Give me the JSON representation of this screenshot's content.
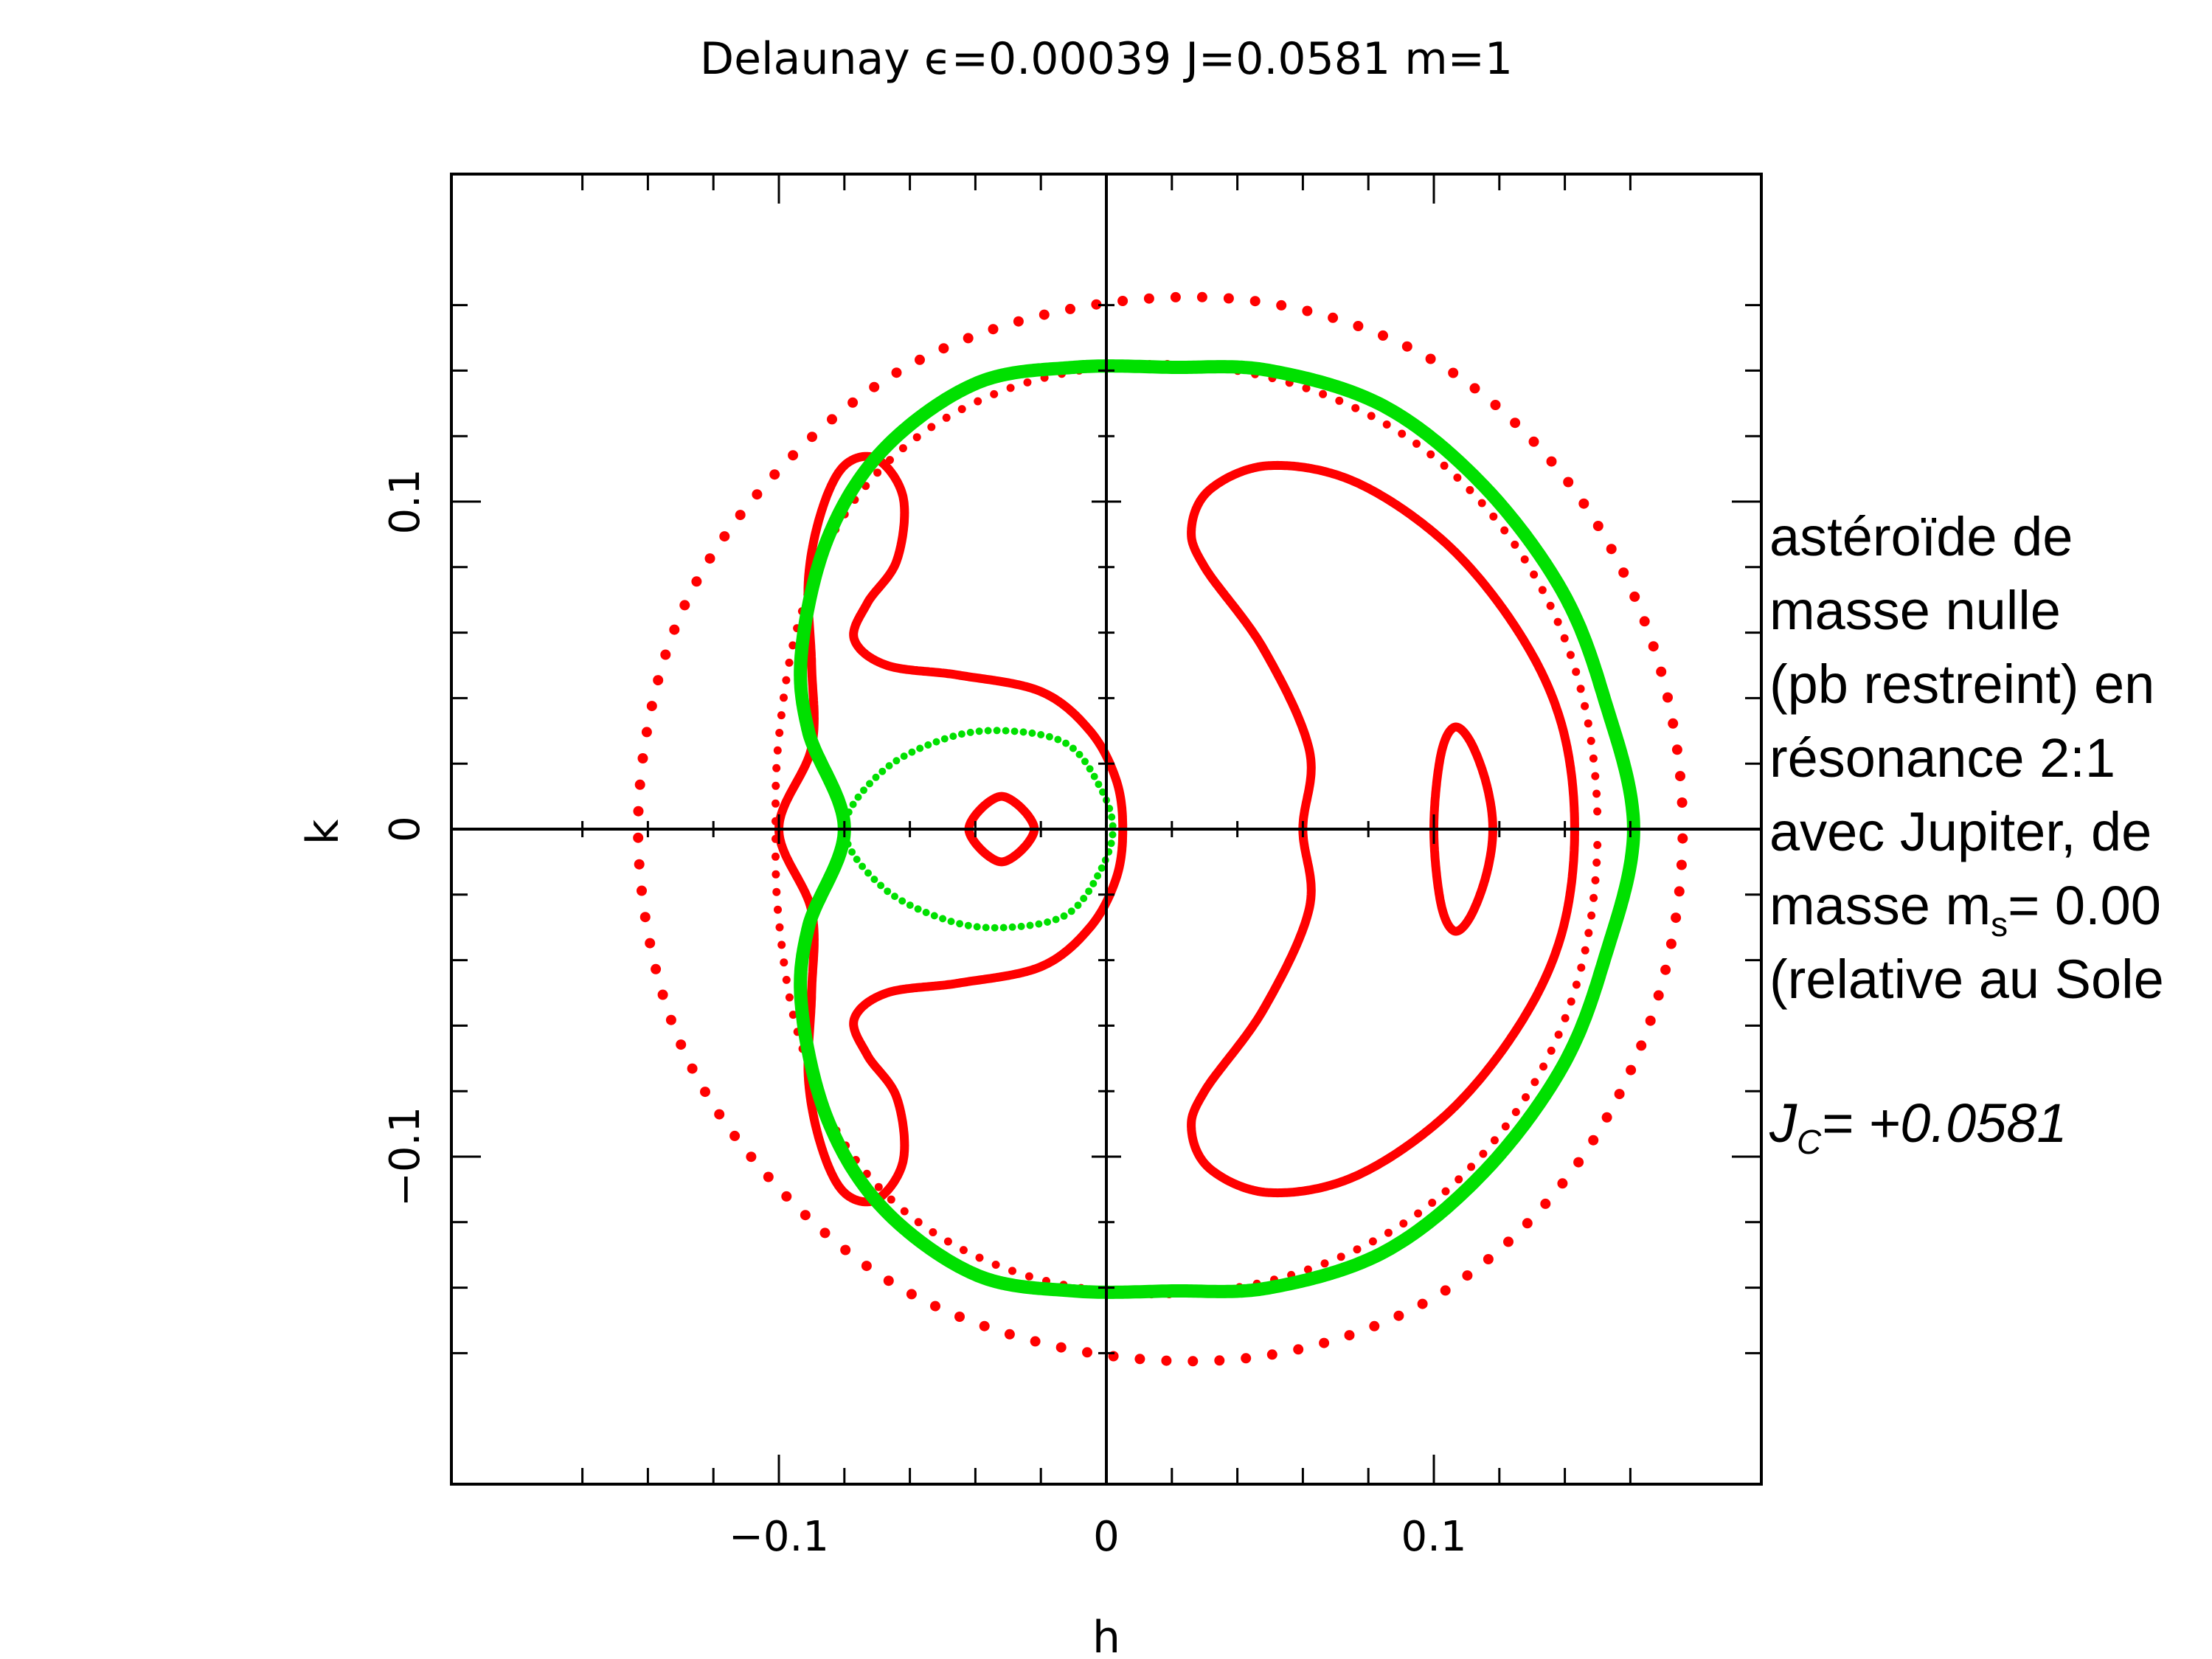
{
  "chart_data": {
    "type": "scatter",
    "title": "Delaunay ϵ=0.00039  J=0.0581  m=1",
    "xlabel": "h",
    "ylabel": "k",
    "xlim": [
      -0.2,
      0.2
    ],
    "ylim": [
      -0.2,
      0.2
    ],
    "xticks": [
      -0.1,
      0,
      0.1
    ],
    "xtick_labels": [
      "−0.1",
      "0",
      "0.1"
    ],
    "yticks": [
      -0.1,
      0,
      0.1
    ],
    "ytick_labels": [
      "−0.1",
      "0",
      "0.1"
    ],
    "grid": false,
    "axes_through_origin": true,
    "colors": {
      "trajectory": "#ff0000",
      "separatrix": "#00e000",
      "axes": "#000000"
    },
    "series": [
      {
        "curve": "outer-circle",
        "color": "#ff0000",
        "points": [
          [
            0.176,
            0
          ],
          [
            0.167,
            0.056
          ],
          [
            0.141,
            0.106
          ],
          [
            0.1,
            0.143
          ],
          [
            0.047,
            0.161
          ],
          [
            -0.01,
            0.159
          ],
          [
            -0.063,
            0.14
          ],
          [
            -0.106,
            0.103
          ],
          [
            -0.133,
            0.058
          ],
          [
            -0.143,
            0
          ],
          [
            -0.133,
            -0.058
          ],
          [
            -0.106,
            -0.103
          ],
          [
            -0.063,
            -0.14
          ],
          [
            -0.01,
            -0.159
          ],
          [
            0.047,
            -0.161
          ],
          [
            0.1,
            -0.143
          ],
          [
            0.141,
            -0.106
          ],
          [
            0.167,
            -0.056
          ],
          [
            0.176,
            0
          ]
        ]
      },
      {
        "curve": "middle-circle",
        "color": "#ff0000",
        "points": [
          [
            0.15,
            0
          ],
          [
            0.144,
            0.046
          ],
          [
            0.126,
            0.085
          ],
          [
            0.097,
            0.116
          ],
          [
            0.06,
            0.135
          ],
          [
            0.019,
            0.142
          ],
          [
            -0.022,
            0.137
          ],
          [
            -0.056,
            0.121
          ],
          [
            -0.08,
            0.096
          ],
          [
            -0.094,
            0.063
          ],
          [
            -0.1,
            0.028
          ],
          [
            -0.101,
            0
          ],
          [
            -0.1,
            -0.028
          ],
          [
            -0.094,
            -0.063
          ],
          [
            -0.08,
            -0.096
          ],
          [
            -0.056,
            -0.121
          ],
          [
            -0.022,
            -0.137
          ],
          [
            0.019,
            -0.142
          ],
          [
            0.06,
            -0.135
          ],
          [
            0.097,
            -0.116
          ],
          [
            0.126,
            -0.085
          ],
          [
            0.144,
            -0.046
          ],
          [
            0.15,
            0
          ]
        ]
      },
      {
        "curve": "crescent",
        "color": "#ff0000",
        "points": [
          [
            0.06,
            0
          ],
          [
            0.062,
            0.024
          ],
          [
            0.048,
            0.055
          ],
          [
            0.03,
            0.08
          ],
          [
            0.026,
            0.092
          ],
          [
            0.032,
            0.104
          ],
          [
            0.05,
            0.111
          ],
          [
            0.076,
            0.106
          ],
          [
            0.104,
            0.087
          ],
          [
            0.126,
            0.06
          ],
          [
            0.139,
            0.032
          ],
          [
            0.143,
            0
          ],
          [
            0.139,
            -0.032
          ],
          [
            0.126,
            -0.06
          ],
          [
            0.104,
            -0.087
          ],
          [
            0.076,
            -0.106
          ],
          [
            0.05,
            -0.111
          ],
          [
            0.032,
            -0.104
          ],
          [
            0.026,
            -0.092
          ],
          [
            0.03,
            -0.08
          ],
          [
            0.048,
            -0.055
          ],
          [
            0.062,
            -0.024
          ],
          [
            0.06,
            0
          ]
        ]
      },
      {
        "curve": "small-oval-right",
        "color": "#ff0000",
        "points": [
          [
            0.1,
            0
          ],
          [
            0.102,
            0.022
          ],
          [
            0.106,
            0.031
          ],
          [
            0.111,
            0.027
          ],
          [
            0.116,
            0.014
          ],
          [
            0.118,
            0
          ],
          [
            0.116,
            -0.014
          ],
          [
            0.111,
            -0.027
          ],
          [
            0.106,
            -0.031
          ],
          [
            0.102,
            -0.022
          ],
          [
            0.1,
            0
          ]
        ]
      },
      {
        "curve": "small-circle-left",
        "color": "#ff0000",
        "points": [
          [
            -0.032,
            0.01
          ],
          [
            -0.022,
            0
          ],
          [
            -0.032,
            -0.01
          ],
          [
            -0.042,
            0
          ],
          [
            -0.032,
            0.01
          ]
        ]
      },
      {
        "curve": "horseshoe-left",
        "color": "#ff0000",
        "points": [
          [
            0.005,
            0
          ],
          [
            0.003,
            0.015
          ],
          [
            -0.005,
            0.03
          ],
          [
            -0.02,
            0.042
          ],
          [
            -0.045,
            0.047
          ],
          [
            -0.067,
            0.05
          ],
          [
            -0.077,
            0.058
          ],
          [
            -0.073,
            0.069
          ],
          [
            -0.064,
            0.082
          ],
          [
            -0.062,
            0.101
          ],
          [
            -0.07,
            0.113
          ],
          [
            -0.08,
            0.111
          ],
          [
            -0.087,
            0.097
          ],
          [
            -0.091,
            0.076
          ],
          [
            -0.09,
            0.05
          ],
          [
            -0.09,
            0.025
          ],
          [
            -0.1,
            0
          ],
          [
            -0.09,
            -0.025
          ],
          [
            -0.09,
            -0.05
          ],
          [
            -0.091,
            -0.076
          ],
          [
            -0.087,
            -0.097
          ],
          [
            -0.08,
            -0.111
          ],
          [
            -0.07,
            -0.113
          ],
          [
            -0.062,
            -0.101
          ],
          [
            -0.064,
            -0.082
          ],
          [
            -0.073,
            -0.069
          ],
          [
            -0.077,
            -0.058
          ],
          [
            -0.067,
            -0.05
          ],
          [
            -0.045,
            -0.047
          ],
          [
            -0.02,
            -0.042
          ],
          [
            -0.005,
            -0.03
          ],
          [
            0.003,
            -0.015
          ],
          [
            0.005,
            0
          ]
        ]
      },
      {
        "curve": "separatrix-outer",
        "color": "#00e000",
        "points": [
          [
            -0.08,
            0
          ],
          [
            -0.091,
            0.03
          ],
          [
            -0.093,
            0.055
          ],
          [
            -0.085,
            0.089
          ],
          [
            -0.068,
            0.116
          ],
          [
            -0.04,
            0.136
          ],
          [
            -0.01,
            0.141
          ],
          [
            0.02,
            0.141
          ],
          [
            0.05,
            0.14
          ],
          [
            0.085,
            0.129
          ],
          [
            0.115,
            0.105
          ],
          [
            0.139,
            0.073
          ],
          [
            0.152,
            0.04
          ],
          [
            0.161,
            0
          ],
          [
            0.152,
            -0.04
          ],
          [
            0.139,
            -0.073
          ],
          [
            0.115,
            -0.105
          ],
          [
            0.085,
            -0.129
          ],
          [
            0.05,
            -0.14
          ],
          [
            0.02,
            -0.141
          ],
          [
            -0.01,
            -0.141
          ],
          [
            -0.04,
            -0.136
          ],
          [
            -0.068,
            -0.116
          ],
          [
            -0.085,
            -0.089
          ],
          [
            -0.093,
            -0.055
          ],
          [
            -0.091,
            -0.03
          ],
          [
            -0.08,
            0
          ]
        ]
      },
      {
        "curve": "separatrix-inner",
        "color": "#00e000",
        "points": [
          [
            -0.08,
            0
          ],
          [
            -0.068,
            0.018
          ],
          [
            -0.048,
            0.028
          ],
          [
            -0.03,
            0.03
          ],
          [
            -0.012,
            0.026
          ],
          [
            -0.002,
            0.013
          ],
          [
            0.002,
            0
          ],
          [
            -0.002,
            -0.013
          ],
          [
            -0.012,
            -0.026
          ],
          [
            -0.03,
            -0.03
          ],
          [
            -0.048,
            -0.028
          ],
          [
            -0.068,
            -0.018
          ],
          [
            -0.08,
            0
          ]
        ]
      }
    ]
  },
  "annotation": {
    "lines": [
      "astéroïde de",
      "masse nulle",
      "(pb restreint) en",
      "résonance 2:1",
      "avec Jupiter, de"
    ],
    "mass_prefix": "masse m",
    "mass_sub": "s",
    "mass_value": "= 0.00",
    "last_line": "(relative au Sole",
    "jc_prefix": "J",
    "jc_sub": "C",
    "jc_value": "= +0.0581"
  }
}
